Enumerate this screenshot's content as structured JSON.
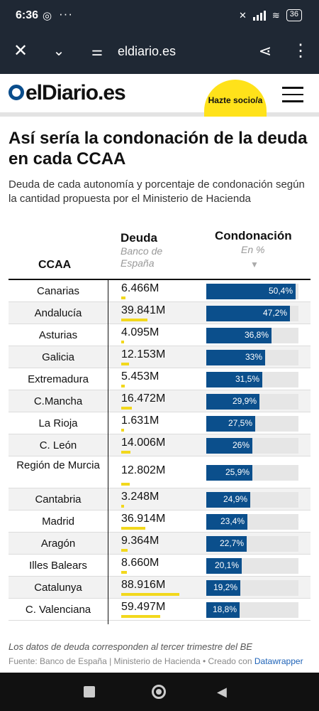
{
  "status_bar": {
    "time": "6:36",
    "battery": "36"
  },
  "browser": {
    "url": "eldiario.es"
  },
  "site": {
    "logo_text": "elDiario.es",
    "subscribe_label": "Hazte socio/a"
  },
  "article": {
    "title": "Así sería la condonación de la deuda en cada CCAA",
    "subtitle": "Deuda de cada autonomía y porcentaje de condonación según la cantidad propuesta por el Ministerio de Hacienda"
  },
  "table_headers": {
    "ccaa": "CCAA",
    "deuda": "Deuda",
    "deuda_sub": "Banco de España",
    "condonacion": "Condonación",
    "condonacion_sub": "En %",
    "sort_arrow": "▼"
  },
  "rows": [
    {
      "name": "Canarias",
      "debt": "6.466M",
      "debt_value": 6.466,
      "pct": "50,4%",
      "pct_value": 50.4
    },
    {
      "name": "Andalucía",
      "debt": "39.841M",
      "debt_value": 39.841,
      "pct": "47,2%",
      "pct_value": 47.2
    },
    {
      "name": "Asturias",
      "debt": "4.095M",
      "debt_value": 4.095,
      "pct": "36,8%",
      "pct_value": 36.8
    },
    {
      "name": "Galicia",
      "debt": "12.153M",
      "debt_value": 12.153,
      "pct": "33%",
      "pct_value": 33.0
    },
    {
      "name": "Extremadura",
      "debt": "5.453M",
      "debt_value": 5.453,
      "pct": "31,5%",
      "pct_value": 31.5
    },
    {
      "name": "C.Mancha",
      "debt": "16.472M",
      "debt_value": 16.472,
      "pct": "29,9%",
      "pct_value": 29.9
    },
    {
      "name": "La Rioja",
      "debt": "1.631M",
      "debt_value": 1.631,
      "pct": "27,5%",
      "pct_value": 27.5
    },
    {
      "name": "C. León",
      "debt": "14.006M",
      "debt_value": 14.006,
      "pct": "26%",
      "pct_value": 26.0
    },
    {
      "name": "Región de Murcia",
      "debt": "12.802M",
      "debt_value": 12.802,
      "pct": "25,9%",
      "pct_value": 25.9
    },
    {
      "name": "Cantabria",
      "debt": "3.248M",
      "debt_value": 3.248,
      "pct": "24,9%",
      "pct_value": 24.9
    },
    {
      "name": "Madrid",
      "debt": "36.914M",
      "debt_value": 36.914,
      "pct": "23,4%",
      "pct_value": 23.4
    },
    {
      "name": "Aragón",
      "debt": "9.364M",
      "debt_value": 9.364,
      "pct": "22,7%",
      "pct_value": 22.7
    },
    {
      "name": "Illes Balears",
      "debt": "8.660M",
      "debt_value": 8.66,
      "pct": "20,1%",
      "pct_value": 20.1
    },
    {
      "name": "Catalunya",
      "debt": "88.916M",
      "debt_value": 88.916,
      "pct": "19,2%",
      "pct_value": 19.2
    },
    {
      "name": "C. Valenciana",
      "debt": "59.497M",
      "debt_value": 59.497,
      "pct": "18,8%",
      "pct_value": 18.8
    }
  ],
  "footer": {
    "note": "Los datos de deuda corresponden al tercer trimestre del BE",
    "source": "Fuente: Banco de España | Ministerio de Hacienda • Creado con",
    "source_link": "Datawrapper"
  },
  "colors": {
    "chrome_bg": "#1f2834",
    "brand_blue": "#0b4f8c",
    "accent_yellow": "#ffe21a",
    "debt_bar_yellow": "#f2d81d"
  }
}
